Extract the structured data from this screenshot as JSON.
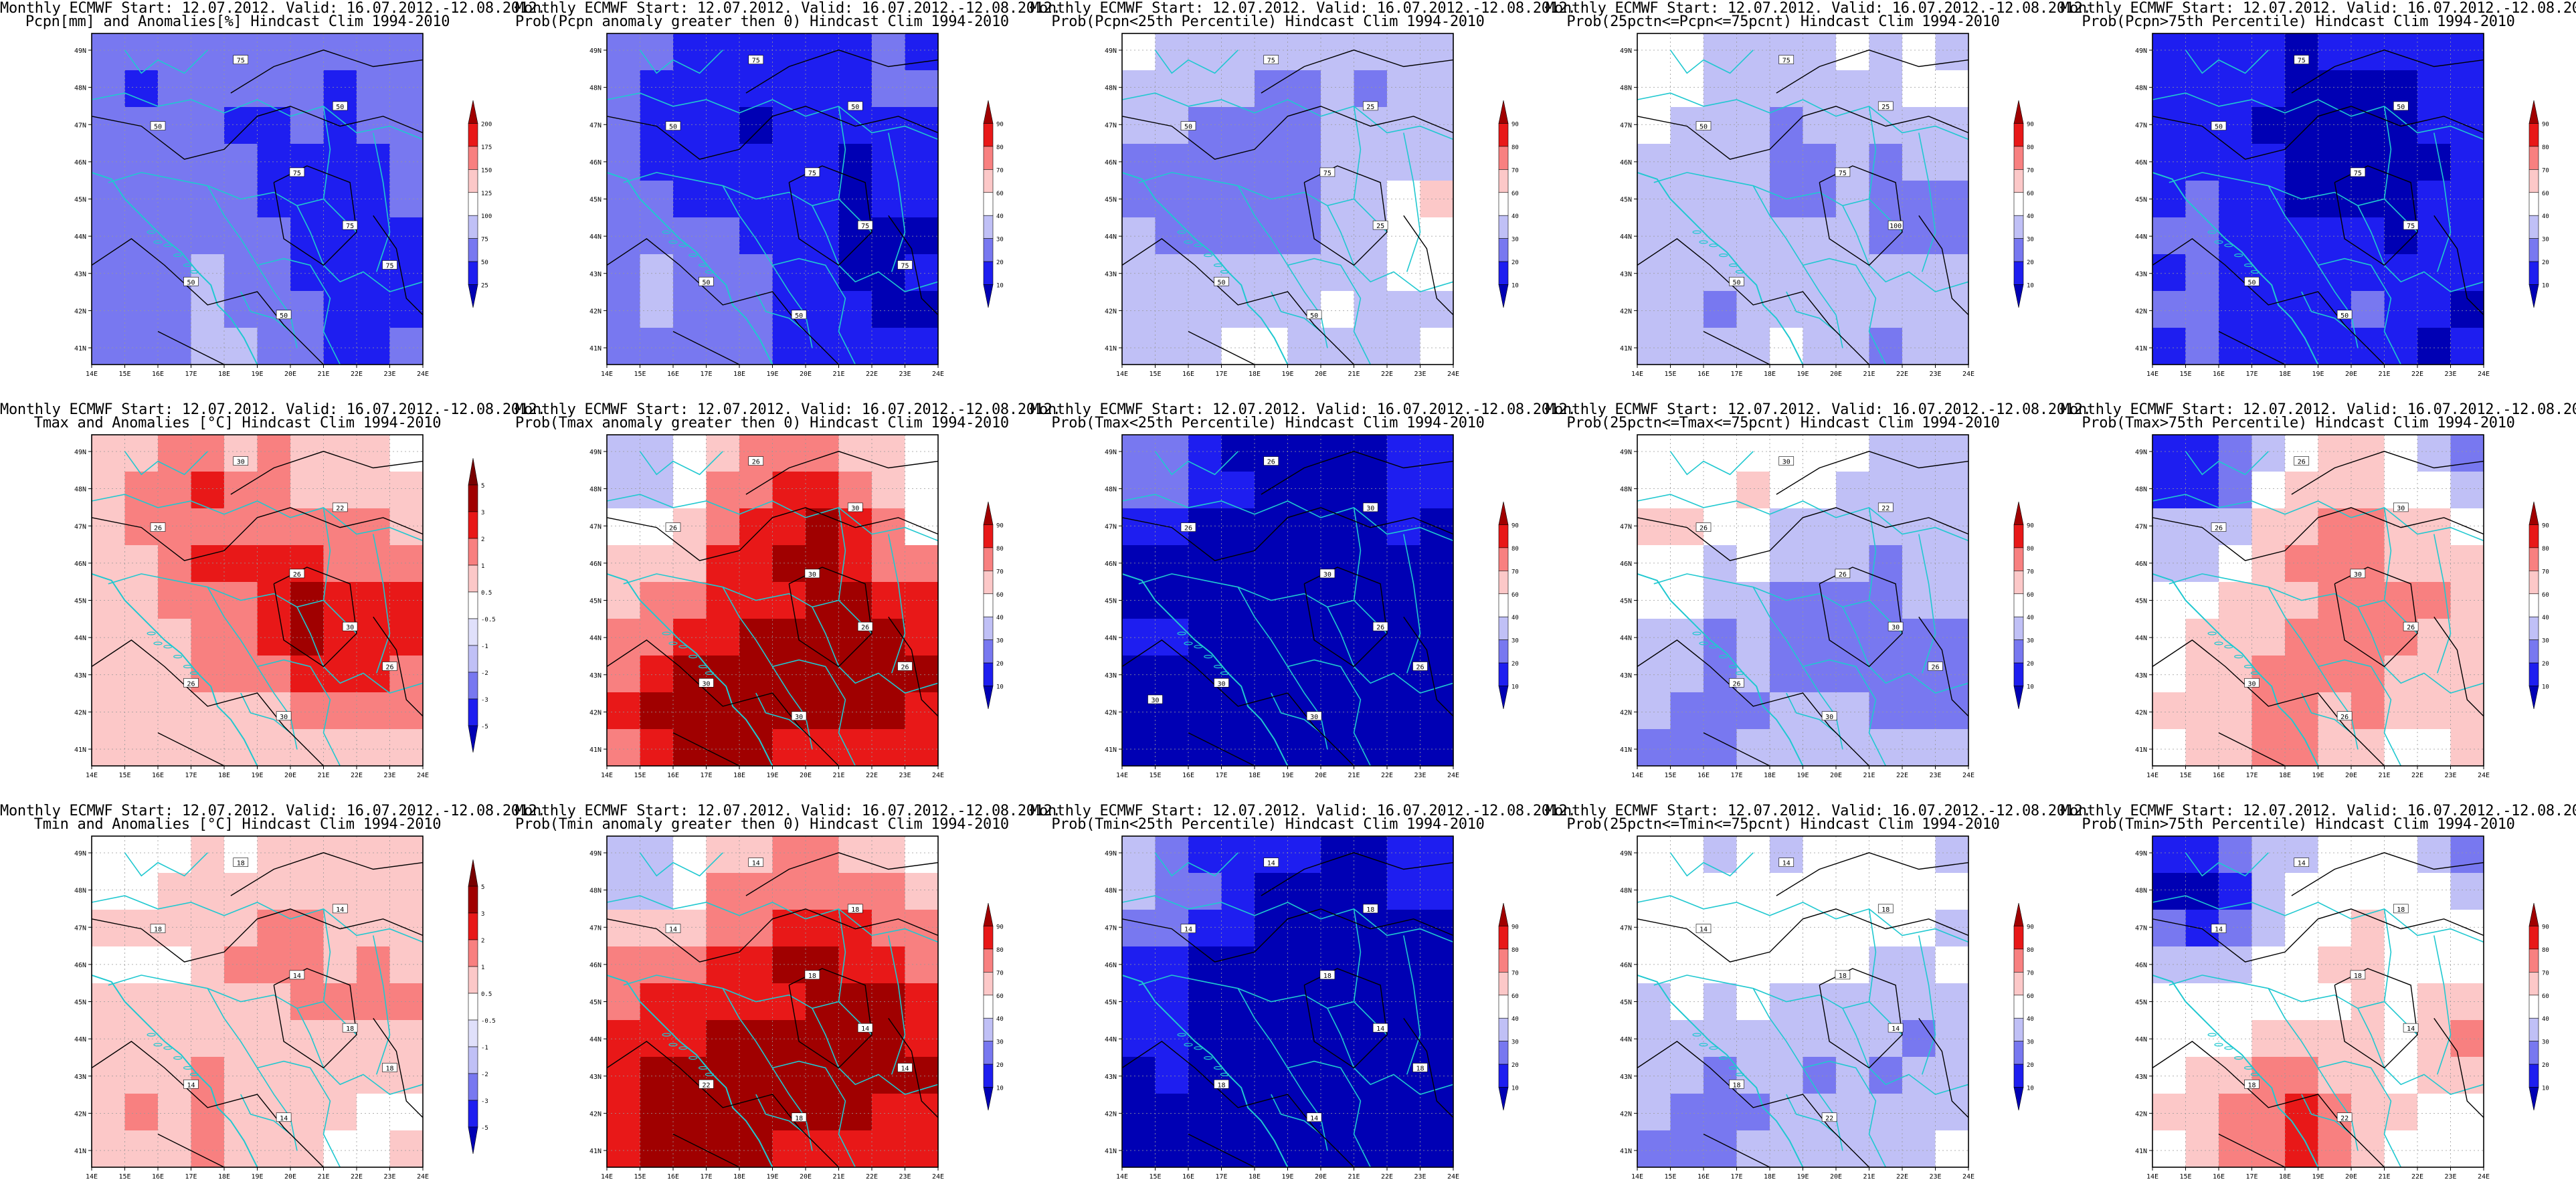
{
  "header_line": "Monthly ECMWF Start: 12.07.2012. Valid: 16.07.2012.-12.08.2012.",
  "lon_ticks": [
    "14E",
    "15E",
    "16E",
    "17E",
    "18E",
    "19E",
    "20E",
    "21E",
    "22E",
    "23E",
    "24E"
  ],
  "lat_ticks": [
    "49N",
    "48N",
    "47N",
    "46N",
    "45N",
    "44N",
    "43N",
    "42N",
    "41N"
  ],
  "colors": {
    "blue_dark": "#0000b4",
    "blue_mid": "#1e1ef0",
    "blue_light": "#7878f0",
    "blue_pale": "#c0c0f6",
    "white": "#ffffff",
    "red_pale": "#fcc8c8",
    "red_light": "#f88080",
    "red_mid": "#e81818",
    "red_dark": "#a00000",
    "coast": "#20c8d0",
    "contour": "#000000"
  },
  "scales": {
    "pcpn": [
      "25",
      "50",
      "75",
      "100",
      "125",
      "150",
      "175",
      "200"
    ],
    "anom": [
      "-5",
      "-3",
      "-2",
      "-1",
      "-0.5",
      "0.5",
      "1",
      "2",
      "3",
      "5"
    ],
    "prob": [
      "10",
      "20",
      "30",
      "40",
      "60",
      "70",
      "80",
      "90"
    ]
  },
  "panels": [
    {
      "subtitle": "Pcpn[mm] and Anomalies[%] Hindcast Clim 1994-2010",
      "scale": "pcpn",
      "palette": "pcpn_anom",
      "contour_labels": [
        "50",
        "50",
        "75",
        "75",
        "75",
        "50",
        "50",
        "75"
      ]
    },
    {
      "subtitle": "Prob(Pcpn anomaly greater then 0) Hindcast Clim 1994-2010",
      "scale": "prob",
      "palette": "pcpn_prob_pos",
      "contour_labels": [
        "50",
        "50",
        "75",
        "75",
        "75",
        "50",
        "50",
        "75"
      ]
    },
    {
      "subtitle": "Prob(Pcpn<25th Percentile) Hindcast Clim 1994-2010",
      "scale": "prob",
      "palette": "pcpn_prob_low",
      "contour_labels": [
        "50",
        "25",
        "75",
        "75",
        "25",
        "50",
        "50"
      ]
    },
    {
      "subtitle": "Prob(25pctn<=Pcpn<=75pcnt) Hindcast Clim 1994-2010",
      "scale": "prob",
      "palette": "pcpn_prob_mid",
      "contour_labels": [
        "50",
        "25",
        "75",
        "75",
        "100",
        "50"
      ]
    },
    {
      "subtitle": "Prob(Pcpn>75th Percentile) Hindcast Clim 1994-2010",
      "scale": "prob",
      "palette": "pcpn_prob_high",
      "contour_labels": [
        "50",
        "50",
        "75",
        "75",
        "75",
        "50",
        "50"
      ]
    },
    {
      "subtitle": "Tmax and Anomalies [°C] Hindcast Clim 1994-2010",
      "scale": "anom",
      "palette": "t_anom",
      "contour_labels": [
        "26",
        "22",
        "30",
        "26",
        "30",
        "26",
        "30",
        "26"
      ]
    },
    {
      "subtitle": "Prob(Tmax anomaly greater then 0) Hindcast Clim 1994-2010",
      "scale": "prob",
      "palette": "t_prob_pos",
      "contour_labels": [
        "26",
        "30",
        "26",
        "30",
        "26",
        "30",
        "30",
        "26"
      ]
    },
    {
      "subtitle": "Prob(Tmax<25th Percentile) Hindcast Clim 1994-2010",
      "scale": "prob",
      "palette": "t_prob_low",
      "contour_labels": [
        "26",
        "30",
        "26",
        "30",
        "26",
        "30",
        "30",
        "26",
        "30"
      ]
    },
    {
      "subtitle": "Prob(25pctn<=Tmax<=75pcnt) Hindcast Clim 1994-2010",
      "scale": "prob",
      "palette": "t_prob_mid",
      "contour_labels": [
        "26",
        "22",
        "30",
        "26",
        "30",
        "26",
        "30",
        "26"
      ]
    },
    {
      "subtitle": "Prob(Tmax>75th Percentile) Hindcast Clim 1994-2010",
      "scale": "prob",
      "palette": "t_prob_high",
      "contour_labels": [
        "26",
        "30",
        "26",
        "30",
        "26",
        "30",
        "26"
      ]
    },
    {
      "subtitle": "Tmin and Anomalies [°C] Hindcast Clim 1994-2010",
      "scale": "anom",
      "palette": "tn_anom",
      "contour_labels": [
        "18",
        "14",
        "18",
        "14",
        "18",
        "14",
        "14",
        "18"
      ]
    },
    {
      "subtitle": "Prob(Tmin anomaly greater then 0) Hindcast Clim 1994-2010",
      "scale": "prob",
      "palette": "tn_prob_pos",
      "contour_labels": [
        "14",
        "18",
        "14",
        "18",
        "14",
        "22",
        "18",
        "14"
      ]
    },
    {
      "subtitle": "Prob(Tmin<25th Percentile) Hindcast Clim 1994-2010",
      "scale": "prob",
      "palette": "tn_prob_low",
      "contour_labels": [
        "14",
        "18",
        "14",
        "18",
        "14",
        "18",
        "14",
        "18"
      ]
    },
    {
      "subtitle": "Prob(25pctn<=Tmin<=75pcnt) Hindcast Clim 1994-2010",
      "scale": "prob",
      "palette": "tn_prob_mid",
      "contour_labels": [
        "14",
        "18",
        "14",
        "18",
        "14",
        "18",
        "22"
      ]
    },
    {
      "subtitle": "Prob(Tmin>75th Percentile) Hindcast Clim 1994-2010",
      "scale": "prob",
      "palette": "tn_prob_high",
      "contour_labels": [
        "14",
        "18",
        "14",
        "18",
        "14",
        "18",
        "22"
      ]
    }
  ]
}
